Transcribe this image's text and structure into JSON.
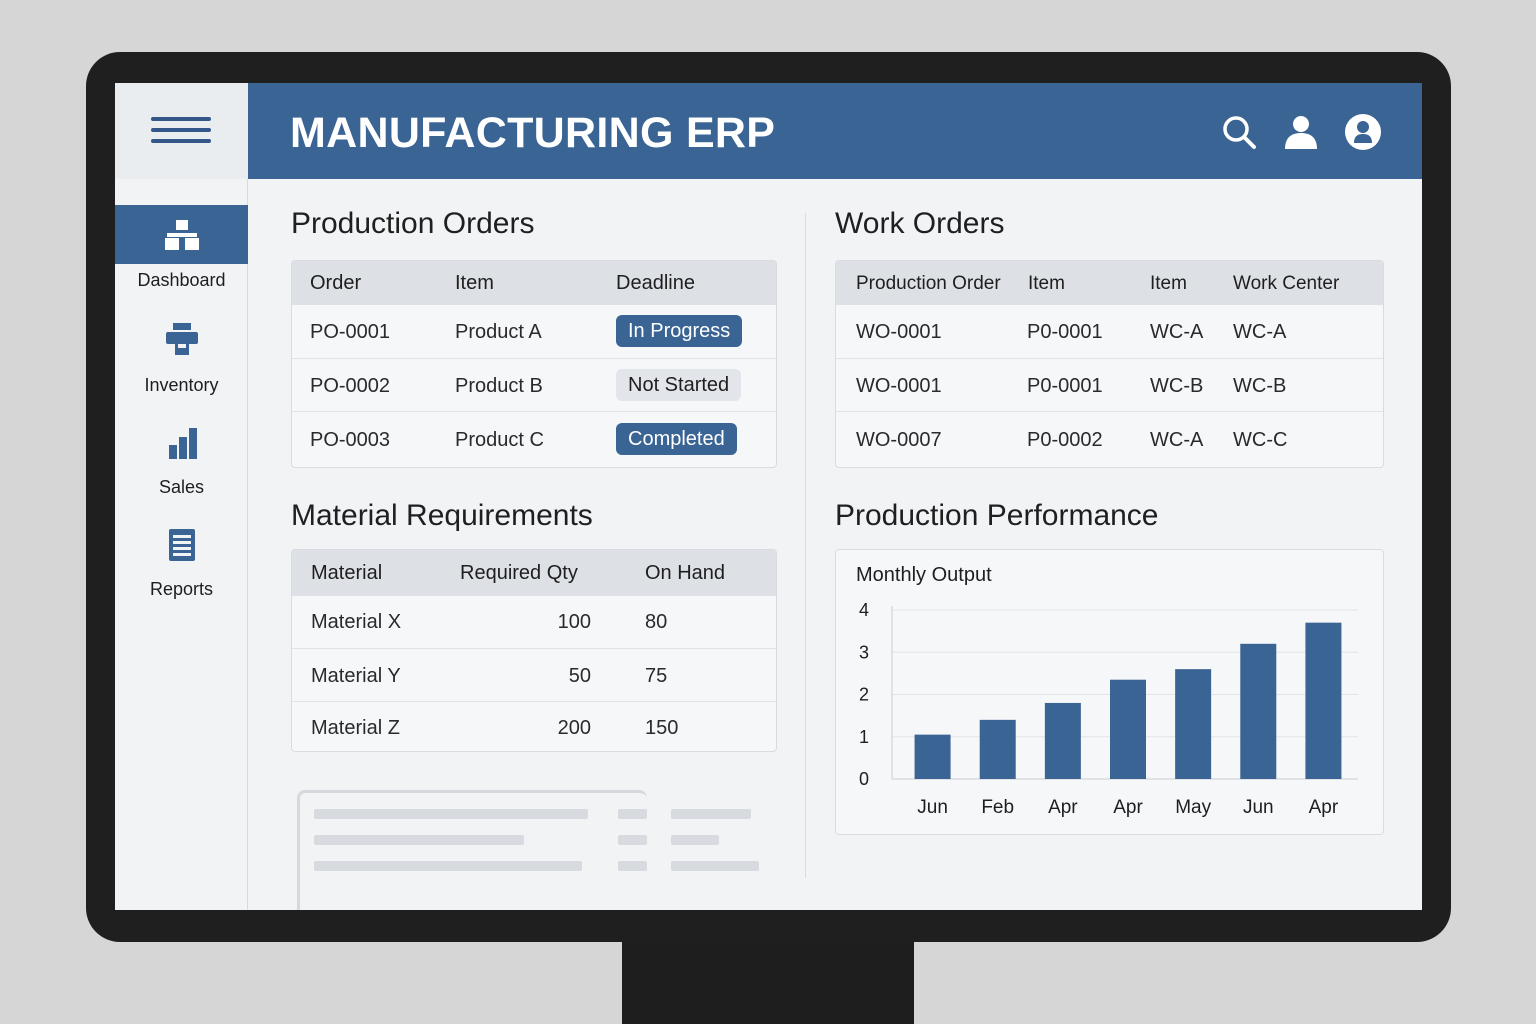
{
  "app": {
    "title": "MANUFACTURING ERP"
  },
  "header_icons": [
    "search-icon",
    "user-icon",
    "account-circle-icon"
  ],
  "colors": {
    "primary": "#3a6494",
    "background": "#f1f3f5",
    "header_row": "#dde1e6"
  },
  "sidebar": {
    "items": [
      {
        "label": "Dashboard",
        "icon": "sitemap-icon",
        "active": true
      },
      {
        "label": "Inventory",
        "icon": "inventory-icon",
        "active": false
      },
      {
        "label": "Sales",
        "icon": "bar-chart-icon",
        "active": false
      },
      {
        "label": "Reports",
        "icon": "document-list-icon",
        "active": false
      }
    ]
  },
  "production_orders": {
    "title": "Production Orders",
    "columns": [
      "Order",
      "Item",
      "Deadline"
    ],
    "rows": [
      {
        "order": "PO-0001",
        "item": "Product A",
        "status": "In Progress"
      },
      {
        "order": "PO-0002",
        "item": "Product B",
        "status": "Not Started"
      },
      {
        "order": "PO-0003",
        "item": "Product C",
        "status": "Completed"
      }
    ]
  },
  "work_orders": {
    "title": "Work Orders",
    "columns": [
      "Production Order",
      "Item",
      "Item",
      "Work Center"
    ],
    "rows": [
      [
        "WO-0001",
        "P0-0001",
        "WC-A",
        "WC-A"
      ],
      [
        "WO-0001",
        "P0-0001",
        "WC-B",
        "WC-B"
      ],
      [
        "WO-0007",
        "P0-0002",
        "WC-A",
        "WC-C"
      ]
    ]
  },
  "material_requirements": {
    "title": "Material Requirements",
    "columns": [
      "Material",
      "Required Qty",
      "On Hand"
    ],
    "rows": [
      [
        "Material X",
        "100",
        "80"
      ],
      [
        "Material Y",
        "50",
        "75"
      ],
      [
        "Material Z",
        "200",
        "150"
      ]
    ]
  },
  "production_performance": {
    "title": "Production Performance",
    "subtitle": "Monthly Output"
  },
  "chart_data": {
    "type": "bar",
    "title": "Monthly Output",
    "categories": [
      "Jun",
      "Feb",
      "Apr",
      "Apr",
      "May",
      "Jun",
      "Apr"
    ],
    "values": [
      1.05,
      1.4,
      1.8,
      2.35,
      2.6,
      3.2,
      3.7
    ],
    "yticks": [
      "0",
      "1",
      "2",
      "3",
      "4"
    ],
    "ylim": [
      0,
      4
    ],
    "grid": true,
    "color": "#3a6494"
  }
}
